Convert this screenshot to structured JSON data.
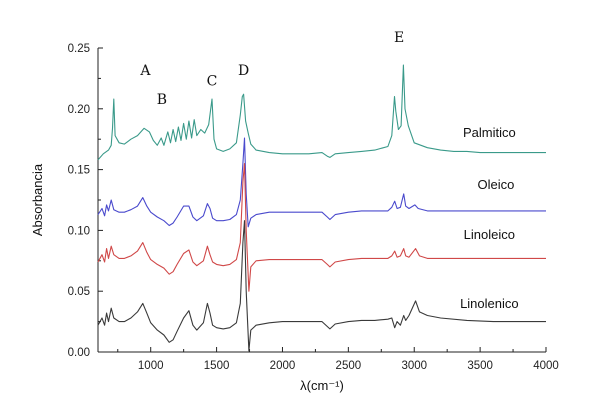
{
  "chart_data": {
    "type": "line",
    "xlabel": "λ(cm⁻¹)",
    "ylabel": "Absorbancia",
    "xlim": [
      600,
      4000
    ],
    "ylim": [
      0.0,
      0.25
    ],
    "x_ticks": [
      "1000",
      "1500",
      "2000",
      "2500",
      "3000",
      "3500",
      "4000"
    ],
    "x_tick_values": [
      1000,
      1500,
      2000,
      2500,
      3000,
      3500,
      4000
    ],
    "y_ticks": [
      "0.00",
      "0.05",
      "0.10",
      "0.15",
      "0.20",
      "0.25"
    ],
    "y_tick_values": [
      0.0,
      0.05,
      0.1,
      0.15,
      0.2,
      0.25
    ],
    "grid": false,
    "annotations": [
      {
        "text": "A",
        "x": 960,
        "y": 0.228
      },
      {
        "text": "B",
        "x": 1085,
        "y": 0.204
      },
      {
        "text": "C",
        "x": 1465,
        "y": 0.219
      },
      {
        "text": "D",
        "x": 1705,
        "y": 0.228
      },
      {
        "text": "E",
        "x": 2885,
        "y": 0.255
      }
    ],
    "series": [
      {
        "name": "Palmitico",
        "color": "#3a9a8a",
        "label_pos": {
          "x": 3570,
          "y": 0.177
        },
        "points": [
          [
            600,
            0.158
          ],
          [
            640,
            0.163
          ],
          [
            680,
            0.166
          ],
          [
            700,
            0.17
          ],
          [
            710,
            0.184
          ],
          [
            720,
            0.208
          ],
          [
            730,
            0.178
          ],
          [
            760,
            0.172
          ],
          [
            800,
            0.171
          ],
          [
            850,
            0.175
          ],
          [
            900,
            0.178
          ],
          [
            950,
            0.184
          ],
          [
            990,
            0.181
          ],
          [
            1020,
            0.174
          ],
          [
            1050,
            0.17
          ],
          [
            1080,
            0.176
          ],
          [
            1100,
            0.17
          ],
          [
            1130,
            0.181
          ],
          [
            1150,
            0.172
          ],
          [
            1170,
            0.183
          ],
          [
            1190,
            0.173
          ],
          [
            1210,
            0.185
          ],
          [
            1230,
            0.174
          ],
          [
            1250,
            0.188
          ],
          [
            1270,
            0.175
          ],
          [
            1290,
            0.19
          ],
          [
            1310,
            0.176
          ],
          [
            1330,
            0.191
          ],
          [
            1350,
            0.178
          ],
          [
            1380,
            0.183
          ],
          [
            1410,
            0.18
          ],
          [
            1440,
            0.187
          ],
          [
            1465,
            0.208
          ],
          [
            1480,
            0.175
          ],
          [
            1500,
            0.167
          ],
          [
            1550,
            0.165
          ],
          [
            1600,
            0.167
          ],
          [
            1650,
            0.172
          ],
          [
            1680,
            0.195
          ],
          [
            1695,
            0.21
          ],
          [
            1705,
            0.212
          ],
          [
            1720,
            0.19
          ],
          [
            1740,
            0.18
          ],
          [
            1760,
            0.171
          ],
          [
            1800,
            0.166
          ],
          [
            1900,
            0.164
          ],
          [
            2000,
            0.163
          ],
          [
            2100,
            0.163
          ],
          [
            2200,
            0.163
          ],
          [
            2300,
            0.164
          ],
          [
            2340,
            0.161
          ],
          [
            2360,
            0.16
          ],
          [
            2400,
            0.163
          ],
          [
            2500,
            0.164
          ],
          [
            2600,
            0.165
          ],
          [
            2700,
            0.166
          ],
          [
            2800,
            0.169
          ],
          [
            2830,
            0.178
          ],
          [
            2850,
            0.21
          ],
          [
            2860,
            0.198
          ],
          [
            2880,
            0.183
          ],
          [
            2900,
            0.186
          ],
          [
            2918,
            0.236
          ],
          [
            2930,
            0.2
          ],
          [
            2955,
            0.186
          ],
          [
            3000,
            0.172
          ],
          [
            3100,
            0.168
          ],
          [
            3200,
            0.166
          ],
          [
            3300,
            0.165
          ],
          [
            3400,
            0.165
          ],
          [
            3500,
            0.164
          ],
          [
            3600,
            0.164
          ],
          [
            3700,
            0.164
          ],
          [
            3800,
            0.164
          ],
          [
            3900,
            0.164
          ],
          [
            4000,
            0.164
          ]
        ]
      },
      {
        "name": "Oleico",
        "color": "#4a4acd",
        "label_pos": {
          "x": 3620,
          "y": 0.134
        },
        "points": [
          [
            600,
            0.113
          ],
          [
            630,
            0.118
          ],
          [
            650,
            0.112
          ],
          [
            665,
            0.121
          ],
          [
            680,
            0.116
          ],
          [
            700,
            0.125
          ],
          [
            720,
            0.117
          ],
          [
            760,
            0.115
          ],
          [
            800,
            0.115
          ],
          [
            850,
            0.117
          ],
          [
            900,
            0.12
          ],
          [
            940,
            0.127
          ],
          [
            970,
            0.12
          ],
          [
            1000,
            0.115
          ],
          [
            1050,
            0.111
          ],
          [
            1100,
            0.108
          ],
          [
            1140,
            0.104
          ],
          [
            1170,
            0.106
          ],
          [
            1200,
            0.111
          ],
          [
            1250,
            0.12
          ],
          [
            1290,
            0.12
          ],
          [
            1320,
            0.111
          ],
          [
            1350,
            0.108
          ],
          [
            1400,
            0.112
          ],
          [
            1430,
            0.122
          ],
          [
            1450,
            0.118
          ],
          [
            1470,
            0.11
          ],
          [
            1500,
            0.108
          ],
          [
            1550,
            0.108
          ],
          [
            1600,
            0.109
          ],
          [
            1650,
            0.113
          ],
          [
            1680,
            0.125
          ],
          [
            1700,
            0.155
          ],
          [
            1712,
            0.176
          ],
          [
            1725,
            0.13
          ],
          [
            1740,
            0.103
          ],
          [
            1760,
            0.11
          ],
          [
            1800,
            0.113
          ],
          [
            1900,
            0.115
          ],
          [
            2000,
            0.115
          ],
          [
            2100,
            0.115
          ],
          [
            2200,
            0.115
          ],
          [
            2300,
            0.115
          ],
          [
            2340,
            0.111
          ],
          [
            2360,
            0.109
          ],
          [
            2400,
            0.113
          ],
          [
            2500,
            0.115
          ],
          [
            2600,
            0.116
          ],
          [
            2700,
            0.116
          ],
          [
            2800,
            0.116
          ],
          [
            2830,
            0.119
          ],
          [
            2852,
            0.124
          ],
          [
            2870,
            0.118
          ],
          [
            2895,
            0.119
          ],
          [
            2920,
            0.13
          ],
          [
            2935,
            0.12
          ],
          [
            2960,
            0.118
          ],
          [
            3005,
            0.121
          ],
          [
            3030,
            0.118
          ],
          [
            3100,
            0.116
          ],
          [
            3200,
            0.116
          ],
          [
            3400,
            0.116
          ],
          [
            3600,
            0.116
          ],
          [
            3800,
            0.116
          ],
          [
            4000,
            0.116
          ]
        ]
      },
      {
        "name": "Linoleico",
        "color": "#d04848",
        "label_pos": {
          "x": 3570,
          "y": 0.093
        },
        "points": [
          [
            600,
            0.074
          ],
          [
            630,
            0.08
          ],
          [
            650,
            0.074
          ],
          [
            665,
            0.085
          ],
          [
            680,
            0.077
          ],
          [
            700,
            0.087
          ],
          [
            720,
            0.08
          ],
          [
            760,
            0.077
          ],
          [
            800,
            0.077
          ],
          [
            850,
            0.079
          ],
          [
            900,
            0.083
          ],
          [
            940,
            0.09
          ],
          [
            970,
            0.082
          ],
          [
            1000,
            0.076
          ],
          [
            1050,
            0.072
          ],
          [
            1100,
            0.069
          ],
          [
            1140,
            0.064
          ],
          [
            1170,
            0.066
          ],
          [
            1200,
            0.072
          ],
          [
            1250,
            0.081
          ],
          [
            1290,
            0.084
          ],
          [
            1320,
            0.074
          ],
          [
            1350,
            0.071
          ],
          [
            1400,
            0.075
          ],
          [
            1430,
            0.087
          ],
          [
            1450,
            0.08
          ],
          [
            1470,
            0.074
          ],
          [
            1500,
            0.072
          ],
          [
            1550,
            0.071
          ],
          [
            1600,
            0.072
          ],
          [
            1650,
            0.076
          ],
          [
            1680,
            0.09
          ],
          [
            1700,
            0.14
          ],
          [
            1712,
            0.155
          ],
          [
            1725,
            0.1
          ],
          [
            1745,
            0.05
          ],
          [
            1760,
            0.07
          ],
          [
            1800,
            0.075
          ],
          [
            1900,
            0.076
          ],
          [
            2000,
            0.076
          ],
          [
            2100,
            0.076
          ],
          [
            2200,
            0.076
          ],
          [
            2300,
            0.076
          ],
          [
            2340,
            0.072
          ],
          [
            2360,
            0.07
          ],
          [
            2400,
            0.074
          ],
          [
            2500,
            0.076
          ],
          [
            2600,
            0.077
          ],
          [
            2700,
            0.077
          ],
          [
            2800,
            0.077
          ],
          [
            2830,
            0.079
          ],
          [
            2852,
            0.083
          ],
          [
            2870,
            0.078
          ],
          [
            2895,
            0.079
          ],
          [
            2920,
            0.085
          ],
          [
            2935,
            0.079
          ],
          [
            2960,
            0.078
          ],
          [
            3010,
            0.085
          ],
          [
            3040,
            0.079
          ],
          [
            3100,
            0.077
          ],
          [
            3200,
            0.077
          ],
          [
            3400,
            0.077
          ],
          [
            3600,
            0.077
          ],
          [
            3800,
            0.077
          ],
          [
            4000,
            0.077
          ]
        ]
      },
      {
        "name": "Linolenico",
        "color": "#3a3a3a",
        "label_pos": {
          "x": 3570,
          "y": 0.036
        },
        "points": [
          [
            600,
            0.022
          ],
          [
            630,
            0.028
          ],
          [
            650,
            0.022
          ],
          [
            665,
            0.032
          ],
          [
            680,
            0.025
          ],
          [
            700,
            0.036
          ],
          [
            720,
            0.028
          ],
          [
            760,
            0.025
          ],
          [
            800,
            0.025
          ],
          [
            850,
            0.028
          ],
          [
            900,
            0.033
          ],
          [
            940,
            0.04
          ],
          [
            970,
            0.032
          ],
          [
            1000,
            0.024
          ],
          [
            1050,
            0.018
          ],
          [
            1100,
            0.014
          ],
          [
            1140,
            0.008
          ],
          [
            1170,
            0.01
          ],
          [
            1200,
            0.017
          ],
          [
            1250,
            0.028
          ],
          [
            1290,
            0.034
          ],
          [
            1320,
            0.022
          ],
          [
            1350,
            0.018
          ],
          [
            1400,
            0.024
          ],
          [
            1430,
            0.04
          ],
          [
            1450,
            0.032
          ],
          [
            1470,
            0.022
          ],
          [
            1500,
            0.02
          ],
          [
            1550,
            0.019
          ],
          [
            1600,
            0.02
          ],
          [
            1650,
            0.024
          ],
          [
            1680,
            0.04
          ],
          [
            1700,
            0.09
          ],
          [
            1712,
            0.108
          ],
          [
            1725,
            0.05
          ],
          [
            1745,
            0.001
          ],
          [
            1760,
            0.018
          ],
          [
            1800,
            0.022
          ],
          [
            1900,
            0.024
          ],
          [
            2000,
            0.025
          ],
          [
            2100,
            0.025
          ],
          [
            2200,
            0.025
          ],
          [
            2300,
            0.025
          ],
          [
            2340,
            0.021
          ],
          [
            2360,
            0.019
          ],
          [
            2400,
            0.023
          ],
          [
            2500,
            0.025
          ],
          [
            2600,
            0.026
          ],
          [
            2700,
            0.026
          ],
          [
            2800,
            0.027
          ],
          [
            2830,
            0.028
          ],
          [
            2852,
            0.02
          ],
          [
            2870,
            0.025
          ],
          [
            2895,
            0.022
          ],
          [
            2920,
            0.03
          ],
          [
            2935,
            0.026
          ],
          [
            2960,
            0.03
          ],
          [
            3010,
            0.042
          ],
          [
            3040,
            0.033
          ],
          [
            3100,
            0.03
          ],
          [
            3200,
            0.028
          ],
          [
            3400,
            0.026
          ],
          [
            3600,
            0.025
          ],
          [
            3800,
            0.025
          ],
          [
            4000,
            0.025
          ]
        ]
      }
    ]
  }
}
